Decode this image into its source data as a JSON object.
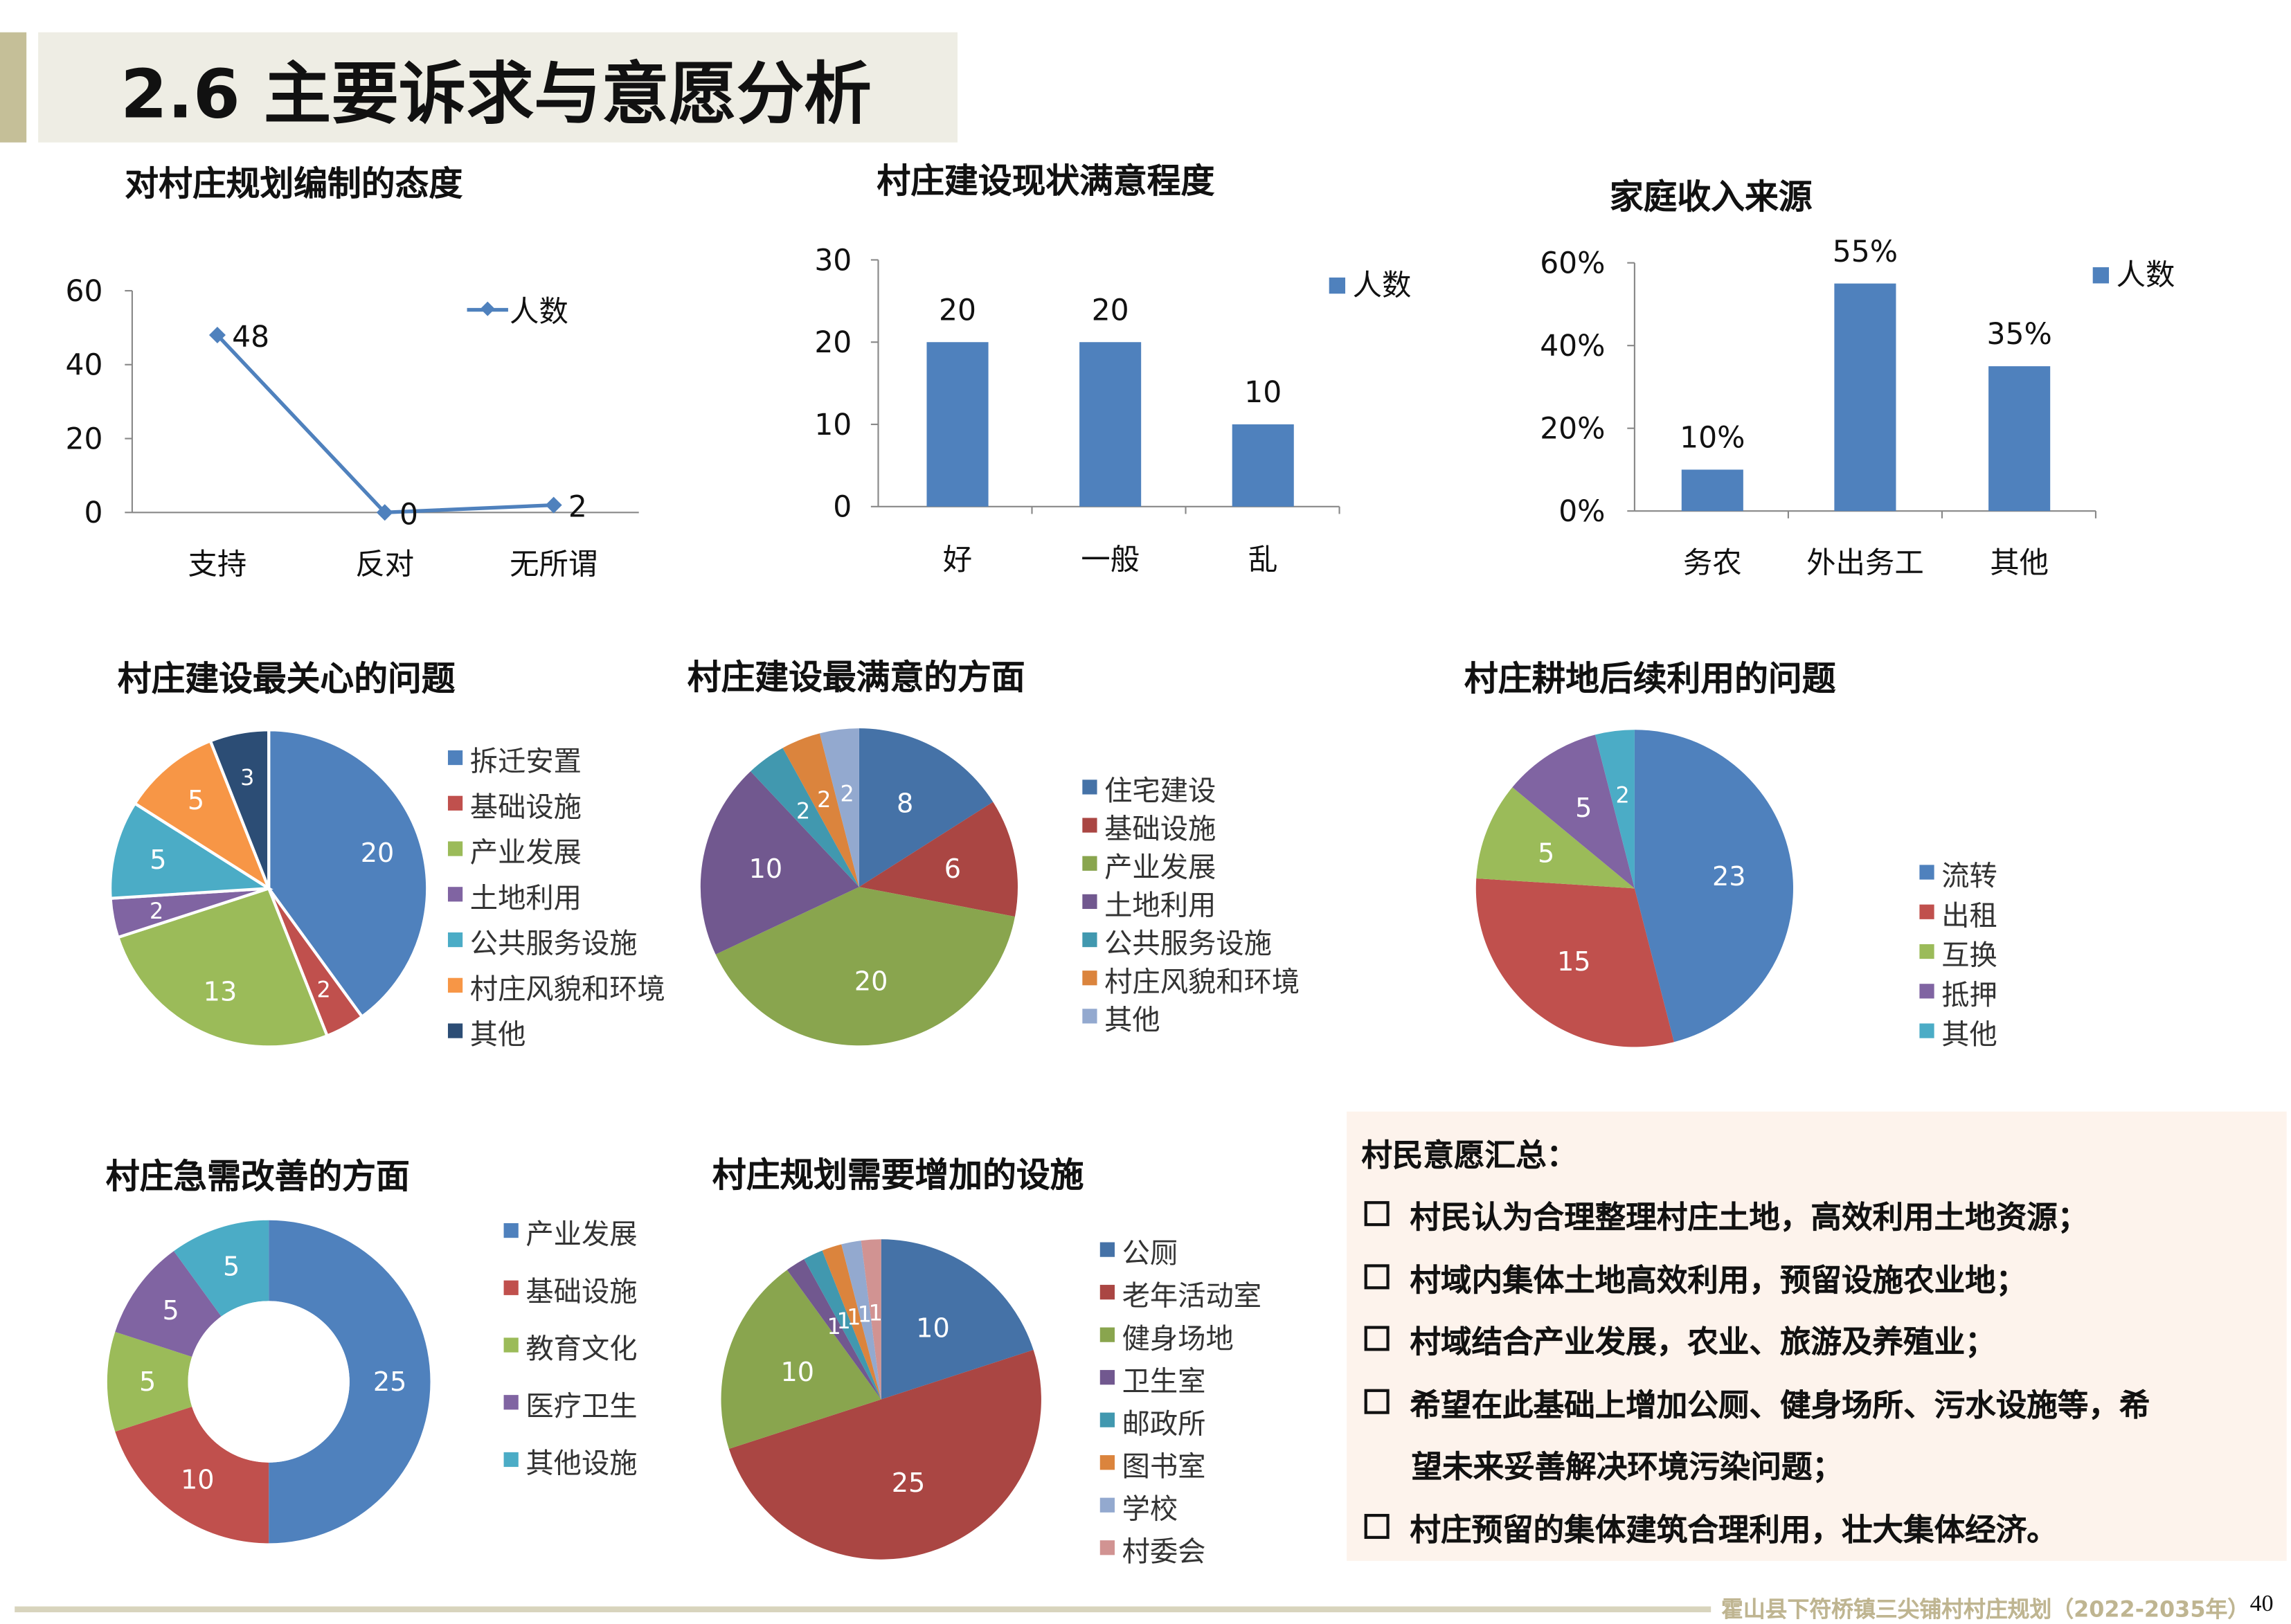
{
  "header": {
    "title": "2.6 主要诉求与意愿分析"
  },
  "chart_data": [
    {
      "id": "attitude",
      "type": "line",
      "title": "对村庄规划编制的态度",
      "categories": [
        "支持",
        "反对",
        "无所谓"
      ],
      "series": [
        {
          "name": "人数",
          "values": [
            48,
            0,
            2
          ],
          "color": "#4f81bd"
        }
      ],
      "ylim": [
        0,
        60
      ],
      "yticks": [
        "0",
        "20",
        "40",
        "60"
      ],
      "legend": "top-right"
    },
    {
      "id": "satisfaction",
      "type": "bar",
      "title": "村庄建设现状满意程度",
      "categories": [
        "好",
        "一般",
        "乱"
      ],
      "series": [
        {
          "name": "人数",
          "values": [
            20,
            20,
            10
          ],
          "color": "#4f81bd"
        }
      ],
      "value_labels": [
        "20",
        "20",
        "10"
      ],
      "ylim": [
        0,
        30
      ],
      "yticks": [
        "0",
        "10",
        "20",
        "30"
      ],
      "legend": "top-right"
    },
    {
      "id": "income",
      "type": "bar",
      "title": "家庭收入来源",
      "categories": [
        "务农",
        "外出务工",
        "其他"
      ],
      "series": [
        {
          "name": "人数",
          "values": [
            10,
            55,
            35
          ],
          "color": "#4f81bd"
        }
      ],
      "value_labels": [
        "10%",
        "55%",
        "35%"
      ],
      "ylim": [
        0,
        60
      ],
      "yticks": [
        "0%",
        "20%",
        "40%",
        "60%"
      ],
      "legend": "top-right"
    },
    {
      "id": "concern",
      "type": "pie",
      "title": "村庄建设最关心的问题",
      "labels": [
        "拆迁安置",
        "基础设施",
        "产业发展",
        "土地利用",
        "公共服务设施",
        "村庄风貌和环境",
        "其他"
      ],
      "values": [
        20,
        2,
        13,
        2,
        5,
        5,
        3
      ],
      "colors": [
        "#4f81bd",
        "#c0504d",
        "#9bbb59",
        "#8064a2",
        "#4bacc6",
        "#f79646",
        "#2c4d75"
      ],
      "legend": "right"
    },
    {
      "id": "satisfied_aspects",
      "type": "pie",
      "title": "村庄建设最满意的方面",
      "labels": [
        "住宅建设",
        "基础设施",
        "产业发展",
        "土地利用",
        "公共服务设施",
        "村庄风貌和环境",
        "其他"
      ],
      "values": [
        8,
        6,
        20,
        10,
        2,
        2,
        2
      ],
      "colors": [
        "#4572a7",
        "#aa4643",
        "#89a54e",
        "#71588f",
        "#4198af",
        "#db843d",
        "#93a9cf"
      ],
      "legend": "right"
    },
    {
      "id": "farmland",
      "type": "pie",
      "title": "村庄耕地后续利用的问题",
      "labels": [
        "流转",
        "出租",
        "互换",
        "抵押",
        "其他"
      ],
      "values": [
        23,
        15,
        5,
        5,
        2
      ],
      "colors": [
        "#4f81bd",
        "#c0504d",
        "#9bbb59",
        "#8064a2",
        "#4bacc6"
      ],
      "legend": "right"
    },
    {
      "id": "improve",
      "type": "donut",
      "title": "村庄急需改善的方面",
      "labels": [
        "产业发展",
        "基础设施",
        "教育文化",
        "医疗卫生",
        "其他设施"
      ],
      "values": [
        25,
        10,
        5,
        5,
        5
      ],
      "colors": [
        "#4f81bd",
        "#c0504d",
        "#9bbb59",
        "#8064a2",
        "#4bacc6"
      ],
      "legend": "right"
    },
    {
      "id": "facilities",
      "type": "pie",
      "title": "村庄规划需要增加的设施",
      "labels": [
        "公厕",
        "老年活动室",
        "健身场地",
        "卫生室",
        "邮政所",
        "图书室",
        "学校",
        "村委会"
      ],
      "values": [
        10,
        25,
        10,
        1,
        1,
        1,
        1,
        1
      ],
      "colors": [
        "#4572a7",
        "#aa4643",
        "#89a54e",
        "#71588f",
        "#4198af",
        "#db843d",
        "#93a9cf",
        "#d19392"
      ],
      "legend": "right"
    }
  ],
  "summary": {
    "heading": "村民意愿汇总：",
    "items": [
      "村民认为合理整理村庄土地，高效利用土地资源；",
      "村域内集体土地高效利用，预留设施农业地；",
      "村域结合产业发展，农业、旅游及养殖业；",
      "希望在此基础上增加公厕、健身场所、污水设施等，希",
      "望未来妥善解决环境污染问题；",
      "村庄预留的集体建筑合理利用，壮大集体经济。"
    ]
  },
  "footer": {
    "text": "霍山县下符桥镇三尖铺村村庄规划（2022-2035年）",
    "page": "40"
  }
}
